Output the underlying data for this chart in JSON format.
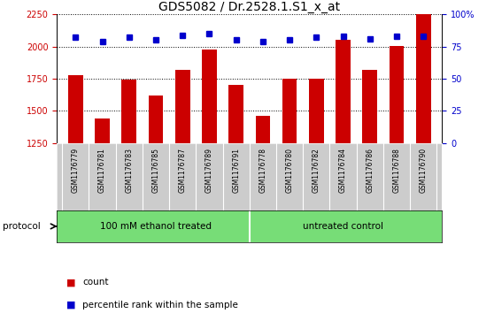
{
  "title": "GDS5082 / Dr.2528.1.S1_x_at",
  "samples": [
    "GSM1176779",
    "GSM1176781",
    "GSM1176783",
    "GSM1176785",
    "GSM1176787",
    "GSM1176789",
    "GSM1176791",
    "GSM1176778",
    "GSM1176780",
    "GSM1176782",
    "GSM1176784",
    "GSM1176786",
    "GSM1176788",
    "GSM1176790"
  ],
  "counts": [
    1775,
    1440,
    1740,
    1620,
    1820,
    1980,
    1700,
    1460,
    1750,
    1750,
    2050,
    1820,
    2005,
    2250
  ],
  "percentiles": [
    82,
    79,
    82,
    80,
    84,
    85,
    80,
    79,
    80,
    82,
    83,
    81,
    83,
    83
  ],
  "ylim_left": [
    1250,
    2250
  ],
  "ylim_right": [
    0,
    100
  ],
  "yticks_left": [
    1250,
    1500,
    1750,
    2000,
    2250
  ],
  "yticks_right": [
    0,
    25,
    50,
    75,
    100
  ],
  "ytick_labels_right": [
    "0",
    "25",
    "50",
    "75",
    "100%"
  ],
  "bar_color": "#cc0000",
  "dot_color": "#0000cc",
  "grid_color": "#000000",
  "bg_color": "#ffffff",
  "group1_label": "100 mM ethanol treated",
  "group2_label": "untreated control",
  "group1_count": 7,
  "group2_count": 7,
  "protocol_label": "protocol",
  "legend_count": "count",
  "legend_percentile": "percentile rank within the sample",
  "sample_bg_color": "#cccccc",
  "protocol_bg_color": "#77dd77",
  "title_fontsize": 10,
  "tick_fontsize": 7,
  "bar_width": 0.55
}
